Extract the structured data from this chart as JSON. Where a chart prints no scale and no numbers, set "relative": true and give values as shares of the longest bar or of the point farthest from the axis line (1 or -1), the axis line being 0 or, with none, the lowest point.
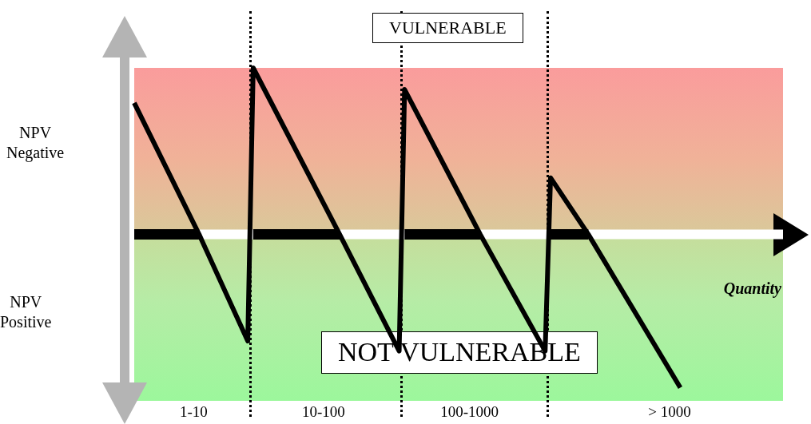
{
  "chart_data": {
    "type": "line",
    "relative": true,
    "xlabel": "Quantity",
    "categories": [
      null,
      null,
      null,
      null,
      null,
      null,
      null,
      null,
      null,
      null,
      null,
      "1-10",
      null,
      null,
      null,
      null,
      null,
      null,
      null,
      null,
      null,
      null,
      null,
      null,
      null,
      null,
      null,
      null,
      null,
      null,
      null,
      null,
      null,
      null,
      null,
      "10-100",
      null,
      null,
      null,
      null,
      null,
      null,
      null,
      null,
      null,
      null,
      null,
      null,
      null,
      null,
      null,
      null,
      null,
      null,
      null,
      null,
      null,
      null,
      null,
      null,
      null,
      null,
      "100-1000",
      null,
      null,
      null,
      null,
      null,
      null,
      null,
      null,
      null,
      null,
      null,
      null,
      null,
      null,
      null,
      null,
      null,
      null,
      null,
      null,
      null,
      null,
      null,
      null,
      null,
      null,
      null,
      null,
      null,
      null,
      null,
      null,
      null,
      null,
      null,
      null,
      "> 1000",
      null,
      null,
      null,
      null,
      null,
      null,
      null,
      null,
      null,
      null,
      null,
      null,
      null,
      null,
      null,
      null,
      null,
      null,
      null,
      null,
      null
    ],
    "series": [
      {
        "color": "#000000",
        "values": [
          0.79,
          null,
          null,
          null,
          null,
          null,
          null,
          null,
          null,
          null,
          null,
          null,
          0,
          null,
          null,
          null,
          null,
          null,
          null,
          null,
          null,
          -0.64,
          1,
          null,
          null,
          null,
          null,
          null,
          null,
          null,
          null,
          null,
          null,
          null,
          null,
          null,
          null,
          null,
          0,
          null,
          null,
          null,
          null,
          null,
          null,
          null,
          null,
          null,
          null,
          -0.7,
          0.87,
          null,
          null,
          null,
          null,
          null,
          null,
          null,
          null,
          null,
          null,
          null,
          null,
          null,
          0,
          null,
          null,
          null,
          null,
          null,
          null,
          null,
          null,
          null,
          null,
          null,
          -0.7,
          0.34,
          null,
          null,
          null,
          null,
          null,
          null,
          0,
          null,
          null,
          null,
          null,
          null,
          null,
          null,
          null,
          null,
          null,
          null,
          null,
          null,
          null,
          null,
          null,
          -0.92,
          null,
          null,
          null,
          null,
          null,
          null,
          null,
          null,
          null,
          null,
          null,
          null,
          null,
          null,
          null,
          null,
          null,
          null,
          null
        ]
      },
      {
        "color": "#000000",
        "values": [
          0,
          null,
          null,
          null,
          null,
          null,
          null,
          null,
          null,
          null,
          null,
          null,
          0,
          null,
          null,
          null,
          null,
          null,
          null,
          null,
          null,
          null,
          null,
          null,
          null,
          null,
          null,
          null,
          null,
          null,
          null,
          null,
          null,
          null,
          null,
          null,
          null,
          null,
          null,
          null,
          null,
          null,
          null,
          null,
          null,
          null,
          null,
          null,
          null,
          null,
          null,
          null,
          null,
          null,
          null,
          null,
          null,
          null,
          null,
          null,
          null,
          null,
          null,
          null,
          null,
          null,
          null,
          null,
          null,
          null,
          null,
          null,
          null,
          null,
          null,
          null,
          null,
          null,
          null,
          null,
          null,
          null,
          null,
          null,
          null,
          null,
          null,
          null,
          null,
          null,
          null,
          null,
          null,
          null,
          null,
          null,
          null,
          null,
          null,
          null,
          null,
          null,
          null,
          null,
          null,
          null,
          null,
          null,
          null,
          null,
          null,
          null,
          null,
          null,
          null,
          null,
          null,
          null,
          null,
          null,
          null
        ]
      },
      {
        "color": "#000000",
        "values": [
          null,
          null,
          null,
          null,
          null,
          null,
          null,
          null,
          null,
          null,
          null,
          null,
          null,
          null,
          null,
          null,
          null,
          null,
          null,
          null,
          null,
          null,
          0,
          null,
          null,
          null,
          null,
          null,
          null,
          null,
          null,
          null,
          null,
          null,
          null,
          null,
          null,
          null,
          0,
          null,
          null,
          null,
          null,
          null,
          null,
          null,
          null,
          null,
          null,
          null,
          null,
          null,
          null,
          null,
          null,
          null,
          null,
          null,
          null,
          null,
          null,
          null,
          null,
          null,
          null,
          null,
          null,
          null,
          null,
          null,
          null,
          null,
          null,
          null,
          null,
          null,
          null,
          null,
          null,
          null,
          null,
          null,
          null,
          null,
          null,
          null,
          null,
          null,
          null,
          null,
          null,
          null,
          null,
          null,
          null,
          null,
          null,
          null,
          null,
          null,
          null,
          null,
          null,
          null,
          null,
          null,
          null,
          null,
          null,
          null,
          null,
          null,
          null,
          null,
          null,
          null,
          null,
          null,
          null,
          null,
          null
        ]
      },
      {
        "color": "#000000",
        "values": [
          null,
          null,
          null,
          null,
          null,
          null,
          null,
          null,
          null,
          null,
          null,
          null,
          null,
          null,
          null,
          null,
          null,
          null,
          null,
          null,
          null,
          null,
          null,
          null,
          null,
          null,
          null,
          null,
          null,
          null,
          null,
          null,
          null,
          null,
          null,
          null,
          null,
          null,
          null,
          null,
          null,
          null,
          null,
          null,
          null,
          null,
          null,
          null,
          null,
          null,
          0,
          null,
          null,
          null,
          null,
          null,
          null,
          null,
          null,
          null,
          null,
          null,
          null,
          null,
          0,
          null,
          null,
          null,
          null,
          null,
          null,
          null,
          null,
          null,
          null,
          null,
          null,
          null,
          null,
          null,
          null,
          null,
          null,
          null,
          null,
          null,
          null,
          null,
          null,
          null,
          null,
          null,
          null,
          null,
          null,
          null,
          null,
          null,
          null,
          null,
          null,
          null,
          null,
          null,
          null,
          null,
          null,
          null,
          null,
          null,
          null,
          null,
          null,
          null,
          null,
          null,
          null,
          null,
          null,
          null,
          null
        ]
      },
      {
        "color": "#000000",
        "values": [
          null,
          null,
          null,
          null,
          null,
          null,
          null,
          null,
          null,
          null,
          null,
          null,
          null,
          null,
          null,
          null,
          null,
          null,
          null,
          null,
          null,
          null,
          null,
          null,
          null,
          null,
          null,
          null,
          null,
          null,
          null,
          null,
          null,
          null,
          null,
          null,
          null,
          null,
          null,
          null,
          null,
          null,
          null,
          null,
          null,
          null,
          null,
          null,
          null,
          null,
          null,
          null,
          null,
          null,
          null,
          null,
          null,
          null,
          null,
          null,
          null,
          null,
          null,
          null,
          null,
          null,
          null,
          null,
          null,
          null,
          null,
          null,
          null,
          null,
          null,
          null,
          null,
          0,
          null,
          null,
          null,
          null,
          null,
          null,
          0,
          null,
          null,
          null,
          null,
          null,
          null,
          null,
          null,
          null,
          null,
          null,
          null,
          null,
          null,
          null,
          null,
          null,
          null,
          null,
          null,
          null,
          null,
          null,
          null,
          null,
          null,
          null,
          null,
          null,
          null,
          null,
          null,
          null,
          null,
          null,
          null
        ]
      }
    ],
    "annotations": [
      "VULNERABLE",
      "NOT VULNERABLE",
      "NPV\nNegative",
      "NPV\nPositive"
    ],
    "grid": false,
    "legend": false,
    "marker": "none",
    "line_style": "solid"
  }
}
